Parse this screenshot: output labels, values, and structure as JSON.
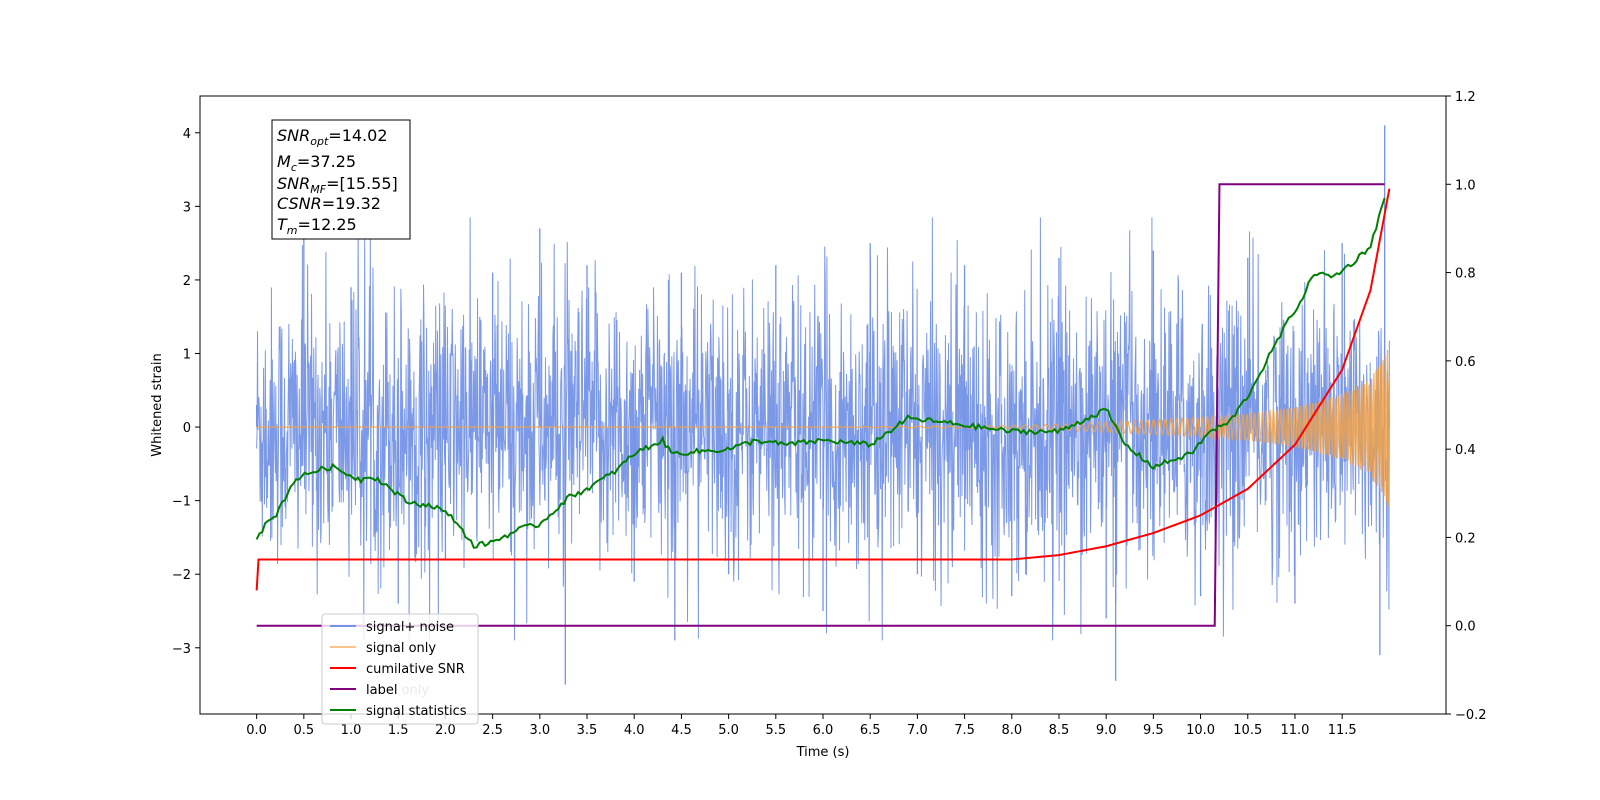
{
  "chart_data": {
    "type": "line",
    "xlabel": "Time (s)",
    "ylabel": "Whitened strain",
    "xlim": [
      -0.6,
      12.6
    ],
    "ylim": [
      -3.9,
      4.5
    ],
    "y2lim": [
      -0.2,
      1.2
    ],
    "x_ticks": [
      "0.0",
      "0.5",
      "1.0",
      "1.5",
      "2.0",
      "2.5",
      "3.0",
      "3.5",
      "4.0",
      "4.5",
      "5.0",
      "5.5",
      "6.0",
      "6.5",
      "7.0",
      "7.5",
      "8.0",
      "8.5",
      "9.0",
      "9.5",
      "10.0",
      "10.5",
      "11.0",
      "11.5"
    ],
    "y_ticks": [
      "−3",
      "−2",
      "−1",
      "0",
      "1",
      "2",
      "3",
      "4"
    ],
    "y2_ticks": [
      "−0.2",
      "0.0",
      "0.2",
      "0.4",
      "0.6",
      "0.8",
      "1.0",
      "1.2"
    ],
    "grid": false,
    "legend_position": "lower-left",
    "noise_band": {
      "x_range": [
        0.0,
        12.0
      ],
      "typical_abs": 1.3,
      "peak_max": 4.1,
      "peak_min": -3.5
    },
    "series": [
      {
        "name": "signal+ noise",
        "axis": "left",
        "color": "#7593e6",
        "x": [
          0.0,
          0.5,
          1.0,
          1.5,
          2.0,
          2.5,
          3.0,
          3.27,
          3.5,
          4.0,
          4.43,
          4.5,
          5.0,
          5.5,
          6.0,
          6.5,
          7.0,
          7.5,
          8.0,
          8.5,
          9.0,
          9.1,
          9.5,
          10.0,
          10.5,
          11.0,
          11.5,
          11.9,
          11.95,
          12.0
        ],
        "y": [
          0.3,
          2.6,
          1.9,
          -2.4,
          -1.8,
          2.1,
          2.7,
          -3.5,
          2.2,
          -2.1,
          -2.9,
          2.1,
          -2.0,
          2.2,
          -2.5,
          2.5,
          -2.0,
          2.2,
          -2.3,
          2.3,
          -2.6,
          -3.45,
          2.4,
          -2.3,
          2.3,
          -2.4,
          2.5,
          -3.1,
          4.1,
          0.2
        ]
      },
      {
        "name": "signal only",
        "axis": "left",
        "color": "#f5a142",
        "x": [
          0.0,
          1.0,
          2.0,
          3.0,
          4.0,
          5.0,
          6.0,
          7.0,
          8.0,
          8.5,
          9.0,
          9.5,
          10.0,
          10.5,
          11.0,
          11.5,
          11.8,
          12.0
        ],
        "amplitude": [
          0.0,
          0.0,
          0.0,
          0.0,
          0.0,
          0.0,
          0.0,
          0.01,
          0.02,
          0.04,
          0.07,
          0.1,
          0.13,
          0.18,
          0.27,
          0.45,
          0.65,
          1.1
        ]
      },
      {
        "name": "cumilative SNR",
        "axis": "right",
        "color": "#ff0000",
        "x": [
          0.0,
          0.02,
          0.5,
          1.0,
          2.0,
          3.0,
          4.0,
          5.0,
          6.0,
          7.0,
          8.0,
          8.5,
          9.0,
          9.5,
          10.0,
          10.5,
          11.0,
          11.5,
          11.8,
          12.0
        ],
        "y": [
          0.08,
          0.15,
          0.15,
          0.15,
          0.15,
          0.15,
          0.15,
          0.15,
          0.15,
          0.15,
          0.15,
          0.16,
          0.18,
          0.21,
          0.25,
          0.31,
          0.41,
          0.58,
          0.76,
          0.99
        ]
      },
      {
        "name": "label",
        "axis": "right",
        "color": "#800080",
        "x": [
          0.0,
          10.15,
          10.2,
          11.95
        ],
        "y": [
          0.0,
          0.0,
          1.0,
          1.0
        ]
      },
      {
        "name": "signal statistics",
        "axis": "right",
        "color": "#008000",
        "x": [
          0.0,
          0.1,
          0.2,
          0.3,
          0.4,
          0.6,
          0.8,
          1.0,
          1.1,
          1.2,
          1.3,
          1.6,
          1.9,
          2.1,
          2.3,
          2.5,
          2.8,
          3.0,
          3.3,
          3.5,
          3.8,
          4.0,
          4.3,
          4.4,
          5.0,
          5.3,
          5.6,
          6.0,
          6.5,
          6.9,
          7.3,
          8.0,
          8.5,
          9.0,
          9.2,
          9.5,
          9.9,
          10.1,
          10.3,
          10.5,
          10.7,
          10.9,
          11.1,
          11.2,
          11.4,
          11.6,
          11.8,
          11.95
        ],
        "y": [
          0.2,
          0.23,
          0.25,
          0.29,
          0.33,
          0.35,
          0.36,
          0.34,
          0.33,
          0.34,
          0.33,
          0.28,
          0.27,
          0.24,
          0.18,
          0.19,
          0.22,
          0.23,
          0.29,
          0.31,
          0.35,
          0.39,
          0.42,
          0.39,
          0.4,
          0.42,
          0.41,
          0.42,
          0.41,
          0.47,
          0.46,
          0.44,
          0.44,
          0.49,
          0.41,
          0.36,
          0.39,
          0.44,
          0.46,
          0.52,
          0.6,
          0.68,
          0.75,
          0.8,
          0.79,
          0.82,
          0.86,
          0.97
        ]
      }
    ],
    "annotation": {
      "lines": [
        {
          "main": "SNR",
          "sub": "opt",
          "value": "=14.02"
        },
        {
          "main": "M",
          "sub": "c",
          "value": "=37.25"
        },
        {
          "main": "SNR",
          "sub": "MF",
          "value": "=[15.55]"
        },
        {
          "main": "CSNR",
          "sub": "",
          "value": "=19.32"
        },
        {
          "main": "T",
          "sub": "m",
          "value": "=12.25"
        }
      ]
    },
    "legend_ghost": "label only"
  }
}
